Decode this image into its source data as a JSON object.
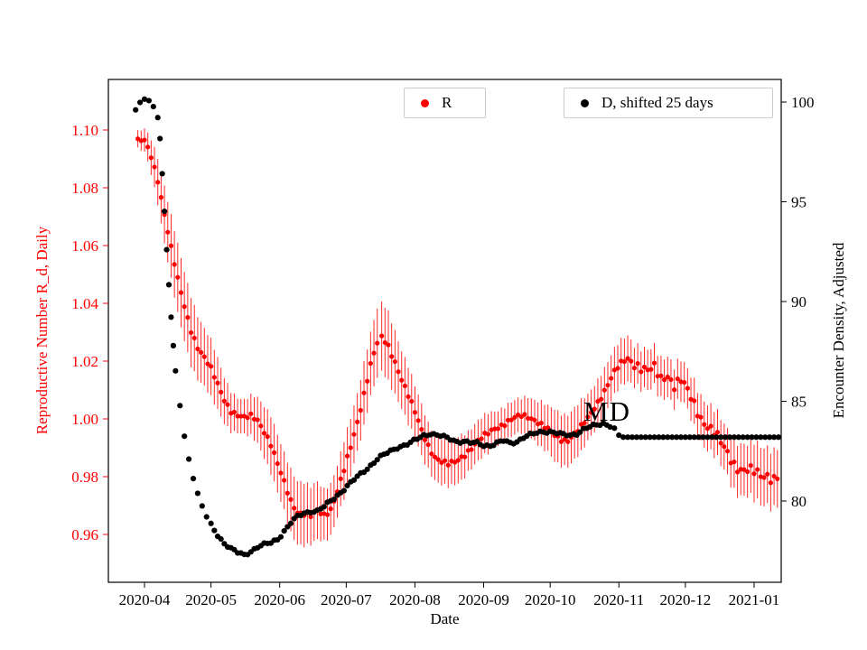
{
  "figure": {
    "xlabel": "Date",
    "left_ylabel": "Reproductive Number R_d, Daily",
    "right_ylabel": "Encounter Density, Adjusted",
    "annotation_text": "MD",
    "colors": {
      "r_series": "#ff0000",
      "d_series": "#000000",
      "left_axis": "#ff0000",
      "legend_border": "#cccccc"
    }
  },
  "legend": {
    "r": {
      "label": "R",
      "color": "#ff0000"
    },
    "d": {
      "label": "D, shifted 25 days",
      "color": "#000000"
    }
  },
  "chart_data": {
    "type": "scatter",
    "x_axis": {
      "label": "Date",
      "unit": "days since 2020-04-01",
      "ticks": [
        {
          "label": "2020-04",
          "d": 0
        },
        {
          "label": "2020-05",
          "d": 30
        },
        {
          "label": "2020-06",
          "d": 61
        },
        {
          "label": "2020-07",
          "d": 91
        },
        {
          "label": "2020-08",
          "d": 122
        },
        {
          "label": "2020-09",
          "d": 153
        },
        {
          "label": "2020-10",
          "d": 183
        },
        {
          "label": "2020-11",
          "d": 214
        },
        {
          "label": "2020-12",
          "d": 244
        },
        {
          "label": "2021-01",
          "d": 275
        }
      ]
    },
    "left_axis": {
      "label": "Reproductive Number R_d, Daily",
      "color": "#ff0000",
      "ticks": [
        1.1,
        1.08,
        1.06,
        1.04,
        1.02,
        1.0,
        0.98,
        0.96
      ],
      "range": [
        0.944,
        1.118
      ]
    },
    "right_axis": {
      "label": "Encounter Density, Adjusted",
      "color": "#000000",
      "ticks": [
        100,
        95,
        90,
        85,
        80
      ],
      "range": [
        75.9,
        101.1
      ]
    },
    "annotations": [
      {
        "text": "MD",
        "d": 200,
        "value": 84.4,
        "axis": "right"
      }
    ],
    "series": [
      {
        "name": "R",
        "axis": "left",
        "color": "#ff0000",
        "marker": "dot",
        "error_bars": true,
        "points": [
          [
            -3,
            1.096,
            0.003
          ],
          [
            0,
            1.096,
            0.004
          ],
          [
            3,
            1.091,
            0.006
          ],
          [
            6,
            1.083,
            0.008
          ],
          [
            9,
            1.071,
            0.01
          ],
          [
            12,
            1.059,
            0.011
          ],
          [
            15,
            1.048,
            0.012
          ],
          [
            18,
            1.039,
            0.012
          ],
          [
            21,
            1.031,
            0.012
          ],
          [
            24,
            1.025,
            0.011
          ],
          [
            27,
            1.021,
            0.01
          ],
          [
            30,
            1.017,
            0.01
          ],
          [
            33,
            1.012,
            0.009
          ],
          [
            36,
            1.007,
            0.008
          ],
          [
            39,
            1.003,
            0.007
          ],
          [
            42,
            1.001,
            0.006
          ],
          [
            45,
            1.0,
            0.006
          ],
          [
            48,
            1.001,
            0.007
          ],
          [
            51,
            1.0,
            0.008
          ],
          [
            54,
            0.996,
            0.009
          ],
          [
            57,
            0.991,
            0.01
          ],
          [
            60,
            0.984,
            0.01
          ],
          [
            63,
            0.978,
            0.01
          ],
          [
            66,
            0.972,
            0.011
          ],
          [
            69,
            0.968,
            0.011
          ],
          [
            72,
            0.967,
            0.011
          ],
          [
            75,
            0.966,
            0.01
          ],
          [
            78,
            0.968,
            0.01
          ],
          [
            81,
            0.967,
            0.009
          ],
          [
            84,
            0.969,
            0.009
          ],
          [
            87,
            0.975,
            0.009
          ],
          [
            90,
            0.982,
            0.01
          ],
          [
            93,
            0.99,
            0.01
          ],
          [
            96,
            0.999,
            0.01
          ],
          [
            99,
            1.009,
            0.011
          ],
          [
            102,
            1.019,
            0.011
          ],
          [
            105,
            1.026,
            0.012
          ],
          [
            107,
            1.028,
            0.012
          ],
          [
            110,
            1.025,
            0.012
          ],
          [
            113,
            1.02,
            0.011
          ],
          [
            116,
            1.014,
            0.01
          ],
          [
            119,
            1.008,
            0.01
          ],
          [
            122,
            1.002,
            0.009
          ],
          [
            125,
            0.996,
            0.009
          ],
          [
            128,
            0.991,
            0.008
          ],
          [
            131,
            0.987,
            0.008
          ],
          [
            134,
            0.985,
            0.008
          ],
          [
            137,
            0.984,
            0.008
          ],
          [
            140,
            0.985,
            0.008
          ],
          [
            143,
            0.987,
            0.008
          ],
          [
            146,
            0.989,
            0.007
          ],
          [
            149,
            0.991,
            0.007
          ],
          [
            152,
            0.993,
            0.007
          ],
          [
            155,
            0.995,
            0.007
          ],
          [
            158,
            0.997,
            0.006
          ],
          [
            161,
            0.998,
            0.006
          ],
          [
            164,
            0.999,
            0.006
          ],
          [
            167,
            1.0,
            0.006
          ],
          [
            170,
            1.001,
            0.006
          ],
          [
            173,
            1.001,
            0.007
          ],
          [
            176,
            1.0,
            0.007
          ],
          [
            179,
            0.998,
            0.008
          ],
          [
            182,
            0.996,
            0.008
          ],
          [
            185,
            0.994,
            0.009
          ],
          [
            188,
            0.993,
            0.009
          ],
          [
            191,
            0.993,
            0.009
          ],
          [
            194,
            0.995,
            0.009
          ],
          [
            197,
            0.997,
            0.009
          ],
          [
            200,
            1.0,
            0.008
          ],
          [
            203,
            1.004,
            0.008
          ],
          [
            206,
            1.008,
            0.008
          ],
          [
            209,
            1.012,
            0.008
          ],
          [
            212,
            1.016,
            0.008
          ],
          [
            215,
            1.019,
            0.008
          ],
          [
            218,
            1.021,
            0.008
          ],
          [
            221,
            1.02,
            0.007
          ],
          [
            224,
            1.018,
            0.007
          ],
          [
            227,
            1.016,
            0.007
          ],
          [
            230,
            1.017,
            0.007
          ],
          [
            233,
            1.014,
            0.007
          ],
          [
            236,
            1.016,
            0.007
          ],
          [
            239,
            1.012,
            0.007
          ],
          [
            242,
            1.013,
            0.007
          ],
          [
            245,
            1.009,
            0.007
          ],
          [
            248,
            1.005,
            0.008
          ],
          [
            251,
            1.001,
            0.008
          ],
          [
            254,
            0.998,
            0.008
          ],
          [
            257,
            0.995,
            0.008
          ],
          [
            260,
            0.991,
            0.008
          ],
          [
            263,
            0.988,
            0.008
          ],
          [
            266,
            0.985,
            0.009
          ],
          [
            269,
            0.983,
            0.009
          ],
          [
            272,
            0.982,
            0.009
          ],
          [
            275,
            0.981,
            0.01
          ],
          [
            278,
            0.98,
            0.01
          ],
          [
            281,
            0.981,
            0.01
          ],
          [
            284,
            0.98,
            0.01
          ],
          [
            287,
            0.981,
            0.01
          ]
        ]
      },
      {
        "name": "D, shifted 25 days",
        "axis": "right",
        "color": "#000000",
        "marker": "dot",
        "error_bars": false,
        "points": [
          [
            -4,
            99.6
          ],
          [
            -2,
            100.0
          ],
          [
            0,
            100.1
          ],
          [
            2,
            100.0
          ],
          [
            4,
            99.8
          ],
          [
            6,
            99.2
          ],
          [
            7,
            98.2
          ],
          [
            8,
            96.5
          ],
          [
            9,
            94.6
          ],
          [
            10,
            92.6
          ],
          [
            11,
            90.8
          ],
          [
            12,
            89.2
          ],
          [
            13,
            87.8
          ],
          [
            14,
            86.5
          ],
          [
            16,
            84.7
          ],
          [
            18,
            83.3
          ],
          [
            20,
            82.1
          ],
          [
            22,
            81.2
          ],
          [
            24,
            80.4
          ],
          [
            26,
            79.7
          ],
          [
            28,
            79.2
          ],
          [
            30,
            78.8
          ],
          [
            33,
            78.3
          ],
          [
            36,
            77.9
          ],
          [
            39,
            77.6
          ],
          [
            42,
            77.4
          ],
          [
            45,
            77.3
          ],
          [
            48,
            77.5
          ],
          [
            51,
            77.7
          ],
          [
            54,
            77.8
          ],
          [
            57,
            77.9
          ],
          [
            60,
            78.1
          ],
          [
            63,
            78.5
          ],
          [
            66,
            78.9
          ],
          [
            69,
            79.2
          ],
          [
            72,
            79.4
          ],
          [
            75,
            79.5
          ],
          [
            78,
            79.5
          ],
          [
            81,
            79.7
          ],
          [
            84,
            80.0
          ],
          [
            87,
            80.3
          ],
          [
            90,
            80.6
          ],
          [
            93,
            80.9
          ],
          [
            96,
            81.2
          ],
          [
            99,
            81.5
          ],
          [
            102,
            81.8
          ],
          [
            105,
            82.1
          ],
          [
            108,
            82.3
          ],
          [
            111,
            82.5
          ],
          [
            114,
            82.7
          ],
          [
            117,
            82.8
          ],
          [
            120,
            82.9
          ],
          [
            123,
            83.1
          ],
          [
            126,
            83.3
          ],
          [
            129,
            83.4
          ],
          [
            132,
            83.3
          ],
          [
            135,
            83.2
          ],
          [
            138,
            83.1
          ],
          [
            141,
            83.0
          ],
          [
            144,
            83.0
          ],
          [
            147,
            82.9
          ],
          [
            150,
            82.9
          ],
          [
            153,
            82.8
          ],
          [
            156,
            82.8
          ],
          [
            159,
            82.9
          ],
          [
            162,
            83.0
          ],
          [
            165,
            82.9
          ],
          [
            168,
            83.0
          ],
          [
            171,
            83.2
          ],
          [
            174,
            83.3
          ],
          [
            177,
            83.4
          ],
          [
            180,
            83.5
          ],
          [
            183,
            83.5
          ],
          [
            186,
            83.4
          ],
          [
            189,
            83.3
          ],
          [
            192,
            83.3
          ],
          [
            195,
            83.4
          ],
          [
            198,
            83.6
          ],
          [
            201,
            83.7
          ],
          [
            204,
            83.8
          ],
          [
            207,
            83.9
          ],
          [
            210,
            83.8
          ],
          [
            212,
            83.6
          ],
          [
            214,
            83.3
          ],
          [
            216,
            83.2
          ],
          [
            220,
            83.2
          ],
          [
            230,
            83.2
          ],
          [
            240,
            83.2
          ],
          [
            250,
            83.2
          ],
          [
            260,
            83.2
          ],
          [
            270,
            83.2
          ],
          [
            280,
            83.2
          ],
          [
            288,
            83.2
          ]
        ]
      }
    ]
  }
}
